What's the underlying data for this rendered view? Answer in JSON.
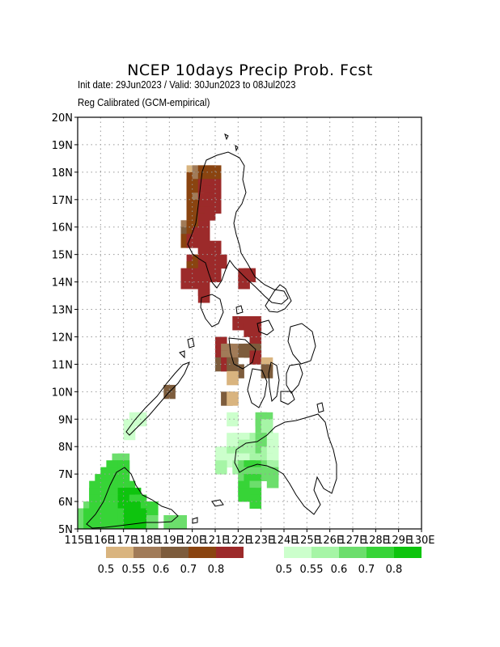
{
  "title": "NCEP 10days Precip Prob. Fcst",
  "subtitle_line1": "Init date: 29Jun2023 / Valid: 30Jun2023 to 08Jul2023",
  "subtitle_line2": "Reg Calibrated (GCM-empirical)",
  "axes": {
    "lon_ticks": [
      "115E",
      "116E",
      "117E",
      "118E",
      "119E",
      "120E",
      "121E",
      "122E",
      "123E",
      "124E",
      "125E",
      "126E",
      "127E",
      "128E",
      "129E",
      "130E"
    ],
    "lat_ticks": [
      "5N",
      "6N",
      "7N",
      "8N",
      "9N",
      "10N",
      "11N",
      "12N",
      "13N",
      "14N",
      "15N",
      "16N",
      "17N",
      "18N",
      "19N",
      "20N"
    ],
    "lon_range": [
      115,
      130
    ],
    "lat_range": [
      5,
      20
    ],
    "grid": true
  },
  "colors": {
    "dry": [
      "#d9b47f",
      "#a17b58",
      "#7d5c3c",
      "#8a4410",
      "#9c2a2a"
    ],
    "wet": [
      "#ccffcc",
      "#a6f5a6",
      "#6cde6c",
      "#37d437",
      "#0ec40e"
    ],
    "coast": "#000000",
    "grid": "#999999"
  },
  "legend": {
    "dry_labels": [
      "0.5",
      "0.55",
      "0.6",
      "0.7",
      "0.8"
    ],
    "wet_labels": [
      "0.5",
      "0.55",
      "0.6",
      "0.7",
      "0.8"
    ]
  },
  "chart_data": {
    "type": "heatmap",
    "cell_size_deg": 0.5,
    "note_cells": "each cell: [lon_west, lat_south, class] ; class d1..d5 below-normal (brown/red), w1..w5 above-normal (green)",
    "cells": [
      [
        119.75,
        17.75,
        "d1"
      ],
      [
        120.0,
        17.75,
        "d2"
      ],
      [
        120.25,
        17.75,
        "d4"
      ],
      [
        120.5,
        17.75,
        "d4"
      ],
      [
        120.75,
        17.75,
        "d4"
      ],
      [
        119.75,
        17.5,
        "d4"
      ],
      [
        120.0,
        17.5,
        "d2"
      ],
      [
        120.25,
        17.5,
        "d4"
      ],
      [
        120.5,
        17.5,
        "d4"
      ],
      [
        119.75,
        17.25,
        "d4"
      ],
      [
        120.0,
        17.25,
        "d4"
      ],
      [
        120.25,
        17.25,
        "d5"
      ],
      [
        120.5,
        17.25,
        "d5"
      ],
      [
        120.75,
        17.25,
        "d5"
      ],
      [
        119.75,
        17.0,
        "d4"
      ],
      [
        120.0,
        17.0,
        "d4"
      ],
      [
        120.25,
        17.0,
        "d5"
      ],
      [
        120.5,
        17.0,
        "d5"
      ],
      [
        120.75,
        17.0,
        "d5"
      ],
      [
        119.75,
        16.75,
        "d4"
      ],
      [
        120.0,
        16.75,
        "d2"
      ],
      [
        120.25,
        16.75,
        "d5"
      ],
      [
        120.5,
        16.75,
        "d5"
      ],
      [
        120.75,
        16.75,
        "d5"
      ],
      [
        119.75,
        16.5,
        "d4"
      ],
      [
        120.0,
        16.5,
        "d4"
      ],
      [
        120.25,
        16.5,
        "d5"
      ],
      [
        120.5,
        16.5,
        "d5"
      ],
      [
        120.75,
        16.5,
        "d5"
      ],
      [
        119.75,
        16.25,
        "d4"
      ],
      [
        120.0,
        16.25,
        "d4"
      ],
      [
        120.25,
        16.25,
        "d5"
      ],
      [
        120.5,
        16.25,
        "d5"
      ],
      [
        119.75,
        16.0,
        "d4"
      ],
      [
        120.0,
        16.0,
        "d4"
      ],
      [
        120.25,
        16.0,
        "d5"
      ],
      [
        119.5,
        15.75,
        "d2"
      ],
      [
        119.75,
        15.75,
        "d4"
      ],
      [
        120.0,
        15.75,
        "d4"
      ],
      [
        120.25,
        15.75,
        "d5"
      ],
      [
        119.5,
        15.5,
        "d3"
      ],
      [
        119.75,
        15.5,
        "d4"
      ],
      [
        120.0,
        15.5,
        "d5"
      ],
      [
        120.25,
        15.5,
        "d5"
      ],
      [
        119.5,
        15.25,
        "d4"
      ],
      [
        119.75,
        15.25,
        "d5"
      ],
      [
        120.0,
        15.25,
        "d5"
      ],
      [
        120.25,
        15.25,
        "d5"
      ],
      [
        120.25,
        15.0,
        "d5"
      ],
      [
        120.75,
        15.0,
        "d5"
      ],
      [
        120.25,
        14.75,
        "d5"
      ],
      [
        120.75,
        14.75,
        "d5"
      ],
      [
        119.75,
        14.5,
        "d5"
      ],
      [
        120.0,
        14.5,
        "d4"
      ],
      [
        120.25,
        14.5,
        "d5"
      ],
      [
        120.5,
        14.5,
        "d5"
      ],
      [
        121.0,
        14.5,
        "d5"
      ],
      [
        119.75,
        14.25,
        "d4"
      ],
      [
        120.25,
        14.25,
        "d5"
      ],
      [
        120.5,
        14.25,
        "d5"
      ],
      [
        119.5,
        14.0,
        "d5"
      ],
      [
        120.0,
        14.0,
        "d5"
      ],
      [
        120.25,
        14.0,
        "d5"
      ],
      [
        120.75,
        14.0,
        "d5"
      ],
      [
        119.5,
        13.75,
        "d5"
      ],
      [
        120.0,
        13.75,
        "d5"
      ],
      [
        122.0,
        14.0,
        "d5"
      ],
      [
        122.25,
        14.0,
        "d5"
      ],
      [
        120.25,
        13.5,
        "d5"
      ],
      [
        122.0,
        13.75,
        "d5"
      ],
      [
        120.25,
        13.25,
        "d5"
      ],
      [
        121.75,
        12.25,
        "d5"
      ],
      [
        122.25,
        12.25,
        "d5"
      ],
      [
        122.5,
        12.25,
        "d5"
      ],
      [
        122.25,
        12.0,
        "d5"
      ],
      [
        122.5,
        12.0,
        "d5"
      ],
      [
        121.0,
        11.5,
        "d5"
      ],
      [
        122.5,
        11.75,
        "d5"
      ],
      [
        121.0,
        11.25,
        "d5"
      ],
      [
        121.25,
        11.25,
        "d2"
      ],
      [
        121.5,
        11.25,
        "d2"
      ],
      [
        122.0,
        11.25,
        "d3"
      ],
      [
        122.25,
        11.25,
        "d3"
      ],
      [
        122.5,
        11.25,
        "d3"
      ],
      [
        121.0,
        11.0,
        "d5"
      ],
      [
        121.25,
        11.0,
        "d2"
      ],
      [
        122.5,
        11.0,
        "d5"
      ],
      [
        121.0,
        10.75,
        "d3"
      ],
      [
        121.25,
        10.75,
        "d5"
      ],
      [
        121.5,
        10.75,
        "d3"
      ],
      [
        123.0,
        10.75,
        "d1"
      ],
      [
        118.75,
        9.75,
        "d3"
      ],
      [
        121.75,
        10.5,
        "d3"
      ],
      [
        123.0,
        10.5,
        "d3"
      ],
      [
        121.5,
        10.25,
        "d1"
      ],
      [
        121.25,
        9.5,
        "d3"
      ],
      [
        121.5,
        9.5,
        "d1"
      ],
      [
        117.0,
        8.5,
        "w1"
      ],
      [
        117.25,
        8.75,
        "w1"
      ],
      [
        117.5,
        8.75,
        "w1"
      ],
      [
        117.0,
        8.25,
        "w1"
      ],
      [
        121.5,
        8.75,
        "w1"
      ],
      [
        122.75,
        8.75,
        "w3"
      ],
      [
        123.0,
        8.75,
        "w3"
      ],
      [
        122.75,
        8.5,
        "w3"
      ],
      [
        123.0,
        8.5,
        "w2"
      ],
      [
        121.5,
        8.0,
        "w1"
      ],
      [
        121.75,
        8.0,
        "w1"
      ],
      [
        122.0,
        8.0,
        "w1"
      ],
      [
        122.25,
        8.0,
        "w1"
      ],
      [
        122.5,
        8.0,
        "w2"
      ],
      [
        122.75,
        8.0,
        "w3"
      ],
      [
        123.0,
        8.0,
        "w3"
      ],
      [
        123.25,
        8.0,
        "w1"
      ],
      [
        121.5,
        7.75,
        "w1"
      ],
      [
        121.75,
        7.75,
        "w1"
      ],
      [
        122.0,
        7.75,
        "w2"
      ],
      [
        122.25,
        7.75,
        "w2"
      ],
      [
        122.5,
        7.75,
        "w2"
      ],
      [
        122.75,
        7.75,
        "w3"
      ],
      [
        123.0,
        7.75,
        "w3"
      ],
      [
        123.25,
        7.75,
        "w1"
      ],
      [
        121.0,
        7.5,
        "w1"
      ],
      [
        121.5,
        7.5,
        "w2"
      ],
      [
        121.75,
        7.5,
        "w2"
      ],
      [
        122.0,
        7.5,
        "w2"
      ],
      [
        122.25,
        7.5,
        "w2"
      ],
      [
        122.5,
        7.5,
        "w2"
      ],
      [
        122.75,
        7.5,
        "w3"
      ],
      [
        123.0,
        7.5,
        "w2"
      ],
      [
        123.25,
        7.5,
        "w1"
      ],
      [
        121.0,
        7.25,
        "w1"
      ],
      [
        121.5,
        7.25,
        "w1"
      ],
      [
        121.75,
        7.25,
        "w1"
      ],
      [
        122.0,
        7.25,
        "w1"
      ],
      [
        122.25,
        7.25,
        "w1"
      ],
      [
        122.5,
        7.25,
        "w2"
      ],
      [
        122.75,
        7.25,
        "w2"
      ],
      [
        123.0,
        7.25,
        "w2"
      ],
      [
        123.25,
        7.25,
        "w1"
      ],
      [
        121.0,
        7.0,
        "w2"
      ],
      [
        121.75,
        7.0,
        "w2"
      ],
      [
        122.0,
        7.0,
        "w3"
      ],
      [
        122.25,
        7.0,
        "w4"
      ],
      [
        122.5,
        7.0,
        "w4"
      ],
      [
        123.0,
        7.0,
        "w3"
      ],
      [
        123.25,
        7.0,
        "w2"
      ],
      [
        122.0,
        6.75,
        "w3"
      ],
      [
        122.25,
        6.75,
        "w3"
      ],
      [
        122.5,
        6.75,
        "w3"
      ],
      [
        123.0,
        6.75,
        "w3"
      ],
      [
        123.25,
        6.75,
        "w3"
      ],
      [
        122.0,
        6.5,
        "w3"
      ],
      [
        122.25,
        6.5,
        "w4"
      ],
      [
        122.5,
        6.5,
        "w4"
      ],
      [
        123.25,
        6.5,
        "w3"
      ],
      [
        122.0,
        6.25,
        "w4"
      ],
      [
        122.25,
        6.25,
        "w4"
      ],
      [
        122.5,
        6.25,
        "w3"
      ],
      [
        122.0,
        6.0,
        "w4"
      ],
      [
        122.25,
        6.0,
        "w4"
      ],
      [
        122.5,
        6.0,
        "w4"
      ],
      [
        122.5,
        5.75,
        "w4"
      ],
      [
        116.5,
        7.25,
        "w3"
      ],
      [
        116.75,
        7.25,
        "w3"
      ],
      [
        116.25,
        7.0,
        "w4"
      ],
      [
        116.5,
        7.0,
        "w4"
      ],
      [
        116.75,
        7.0,
        "w4"
      ],
      [
        116.0,
        6.75,
        "w4"
      ],
      [
        116.25,
        6.75,
        "w4"
      ],
      [
        116.5,
        6.75,
        "w4"
      ],
      [
        116.75,
        6.75,
        "w4"
      ],
      [
        115.75,
        6.5,
        "w4"
      ],
      [
        116.0,
        6.5,
        "w4"
      ],
      [
        116.25,
        6.5,
        "w4"
      ],
      [
        116.5,
        6.5,
        "w4"
      ],
      [
        116.75,
        6.5,
        "w4"
      ],
      [
        115.5,
        6.25,
        "w4"
      ],
      [
        115.75,
        6.25,
        "w4"
      ],
      [
        116.0,
        6.25,
        "w4"
      ],
      [
        116.25,
        6.25,
        "w4"
      ],
      [
        116.5,
        6.25,
        "w4"
      ],
      [
        116.75,
        6.25,
        "w4"
      ],
      [
        117.0,
        6.25,
        "w4"
      ],
      [
        115.5,
        6.0,
        "w4"
      ],
      [
        115.75,
        6.0,
        "w4"
      ],
      [
        116.0,
        6.0,
        "w4"
      ],
      [
        116.25,
        6.0,
        "w4"
      ],
      [
        116.5,
        6.0,
        "w4"
      ],
      [
        116.75,
        6.0,
        "w5"
      ],
      [
        117.0,
        6.0,
        "w5"
      ],
      [
        117.25,
        6.0,
        "w5"
      ],
      [
        115.5,
        5.75,
        "w4"
      ],
      [
        115.75,
        5.75,
        "w4"
      ],
      [
        116.0,
        5.75,
        "w4"
      ],
      [
        116.25,
        5.75,
        "w4"
      ],
      [
        116.5,
        5.75,
        "w4"
      ],
      [
        116.75,
        5.75,
        "w5"
      ],
      [
        117.0,
        5.75,
        "w5"
      ],
      [
        117.25,
        5.75,
        "w4"
      ],
      [
        117.5,
        5.75,
        "w4"
      ],
      [
        115.25,
        5.5,
        "w3"
      ],
      [
        115.5,
        5.5,
        "w4"
      ],
      [
        115.75,
        5.5,
        "w4"
      ],
      [
        116.0,
        5.5,
        "w4"
      ],
      [
        116.25,
        5.5,
        "w4"
      ],
      [
        116.5,
        5.5,
        "w4"
      ],
      [
        116.75,
        5.5,
        "w5"
      ],
      [
        117.0,
        5.5,
        "w5"
      ],
      [
        117.25,
        5.5,
        "w5"
      ],
      [
        117.5,
        5.5,
        "w5"
      ],
      [
        117.75,
        5.5,
        "w4"
      ],
      [
        118.0,
        5.5,
        "w4"
      ],
      [
        115.0,
        5.25,
        "w3"
      ],
      [
        115.25,
        5.25,
        "w4"
      ],
      [
        115.5,
        5.25,
        "w4"
      ],
      [
        115.75,
        5.25,
        "w4"
      ],
      [
        116.0,
        5.25,
        "w4"
      ],
      [
        116.25,
        5.25,
        "w4"
      ],
      [
        116.5,
        5.25,
        "w4"
      ],
      [
        116.75,
        5.25,
        "w4"
      ],
      [
        117.0,
        5.25,
        "w5"
      ],
      [
        117.25,
        5.25,
        "w5"
      ],
      [
        117.5,
        5.25,
        "w5"
      ],
      [
        115.0,
        5.0,
        "w3"
      ],
      [
        115.25,
        5.0,
        "w4"
      ],
      [
        115.5,
        5.0,
        "w4"
      ],
      [
        115.75,
        5.0,
        "w4"
      ],
      [
        116.0,
        5.0,
        "w4"
      ],
      [
        116.25,
        5.0,
        "w4"
      ],
      [
        116.5,
        5.0,
        "w4"
      ],
      [
        116.75,
        5.0,
        "w4"
      ],
      [
        117.0,
        5.0,
        "w5"
      ],
      [
        117.25,
        5.0,
        "w5"
      ],
      [
        117.5,
        5.0,
        "w5"
      ],
      [
        117.75,
        5.0,
        "w5"
      ],
      [
        118.0,
        5.0,
        "w3"
      ],
      [
        118.75,
        5.0,
        "w3"
      ],
      [
        119.25,
        5.0,
        "w3"
      ]
    ]
  }
}
